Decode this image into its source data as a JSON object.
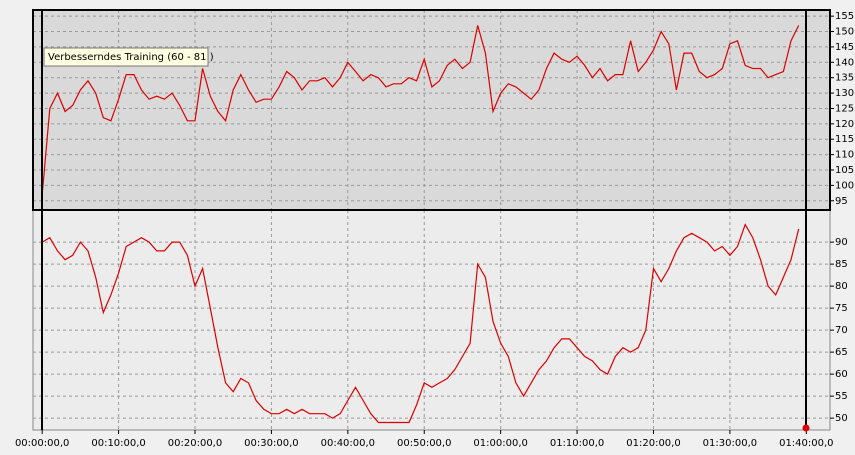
{
  "chart_data": [
    {
      "type": "line",
      "annotation": "Verbesserndes Training (60 - 81 )",
      "x": [
        0,
        1,
        2,
        3,
        4,
        5,
        6,
        7,
        8,
        9,
        10,
        11,
        12,
        13,
        14,
        15,
        16,
        17,
        18,
        19,
        20,
        21,
        22,
        23,
        24,
        25,
        26,
        27,
        28,
        29,
        30,
        31,
        32,
        33,
        34,
        35,
        36,
        37,
        38,
        39,
        40,
        41,
        42,
        43,
        44,
        45,
        46,
        47,
        48,
        49,
        50,
        51,
        52,
        53,
        54,
        55,
        56,
        57,
        58,
        59,
        60,
        61,
        62,
        63,
        64,
        65,
        66,
        67,
        68,
        69,
        70,
        71,
        72,
        73,
        74,
        75,
        76,
        77,
        78,
        79,
        80,
        81,
        82,
        83,
        84,
        85,
        86,
        87,
        88,
        89,
        90,
        91,
        92,
        93,
        94,
        95,
        96,
        97,
        98,
        99
      ],
      "series": [
        {
          "color": "#dd0000",
          "values": [
            97,
            125,
            130,
            124,
            126,
            131,
            134,
            130,
            122,
            121,
            128,
            136,
            136,
            131,
            128,
            129,
            128,
            130,
            126,
            121,
            121,
            138,
            129,
            124,
            121,
            131,
            136,
            131,
            127,
            128,
            128,
            132,
            137,
            135,
            131,
            134,
            134,
            135,
            132,
            135,
            140,
            137,
            134,
            136,
            135,
            132,
            133,
            133,
            135,
            134,
            141,
            132,
            134,
            139,
            141,
            138,
            140,
            152,
            143,
            124,
            130,
            133,
            132,
            130,
            128,
            131,
            138,
            143,
            141,
            140,
            142,
            139,
            135,
            138,
            134,
            136,
            136,
            147,
            137,
            140,
            144,
            150,
            146,
            131,
            143,
            143,
            137,
            135,
            136,
            138,
            146,
            147,
            139,
            138,
            138,
            135,
            136,
            137,
            147,
            152
          ]
        }
      ],
      "xlim": [
        -1.2,
        103.1
      ],
      "ylim": [
        92,
        157
      ],
      "yticks": [
        95,
        100,
        105,
        110,
        115,
        120,
        125,
        130,
        135,
        140,
        145,
        150,
        155
      ],
      "grid": true,
      "background": "#d9d9d9"
    },
    {
      "type": "line",
      "x": [
        0,
        1,
        2,
        3,
        4,
        5,
        6,
        7,
        8,
        9,
        10,
        11,
        12,
        13,
        14,
        15,
        16,
        17,
        18,
        19,
        20,
        21,
        22,
        23,
        24,
        25,
        26,
        27,
        28,
        29,
        30,
        31,
        32,
        33,
        34,
        35,
        36,
        37,
        38,
        39,
        40,
        41,
        42,
        43,
        44,
        45,
        46,
        47,
        48,
        49,
        50,
        51,
        52,
        53,
        54,
        55,
        56,
        57,
        58,
        59,
        60,
        61,
        62,
        63,
        64,
        65,
        66,
        67,
        68,
        69,
        70,
        71,
        72,
        73,
        74,
        75,
        76,
        77,
        78,
        79,
        80,
        81,
        82,
        83,
        84,
        85,
        86,
        87,
        88,
        89,
        90,
        91,
        92,
        93,
        94,
        95,
        96,
        97,
        98,
        99
      ],
      "series": [
        {
          "color": "#dd0000",
          "values": [
            90,
            91,
            88,
            86,
            87,
            90,
            88,
            82,
            74,
            78,
            83,
            89,
            90,
            91,
            90,
            88,
            88,
            90,
            90,
            87,
            80,
            84,
            75,
            66,
            58,
            56,
            59,
            58,
            54,
            52,
            51,
            51,
            52,
            51,
            52,
            51,
            51,
            51,
            50,
            51,
            54,
            57,
            54,
            51,
            49,
            49,
            49,
            49,
            49,
            53,
            58,
            57,
            58,
            59,
            61,
            64,
            67,
            85,
            82,
            72,
            67,
            64,
            58,
            55,
            58,
            61,
            63,
            66,
            68,
            68,
            66,
            64,
            63,
            61,
            60,
            64,
            66,
            65,
            66,
            70,
            84,
            81,
            84,
            88,
            91,
            92,
            91,
            90,
            88,
            89,
            87,
            89,
            94,
            91,
            86,
            80,
            78,
            82,
            86,
            93
          ]
        }
      ],
      "xlim": [
        -1.2,
        103.1
      ],
      "ylim": [
        47.3,
        97.3
      ],
      "yticks": [
        50,
        55,
        60,
        65,
        70,
        75,
        80,
        85,
        90
      ],
      "xticks": [
        {
          "value": 0,
          "label": "00:00:00,0"
        },
        {
          "value": 10,
          "label": "00:10:00,0"
        },
        {
          "value": 20,
          "label": "00:20:00,0"
        },
        {
          "value": 30,
          "label": "00:30:00,0"
        },
        {
          "value": 40,
          "label": "00:40:00,0"
        },
        {
          "value": 50,
          "label": "00:50:00,0"
        },
        {
          "value": 60,
          "label": "01:00:00,0"
        },
        {
          "value": 70,
          "label": "01:10:00,0"
        },
        {
          "value": 80,
          "label": "01:20:00,0"
        },
        {
          "value": 90,
          "label": "01:30:00,0"
        },
        {
          "value": 100,
          "label": "01:40:00,0"
        }
      ],
      "grid": true,
      "background": "#ececec"
    }
  ]
}
